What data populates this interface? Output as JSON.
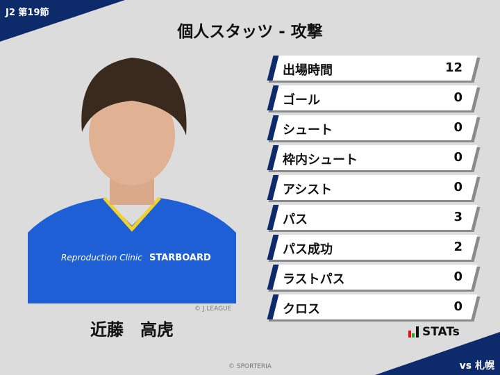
{
  "header": {
    "league": "J2 第19節",
    "title": "個人スタッツ - 攻撃"
  },
  "player": {
    "name": "近藤　高虎",
    "photo_credit": "© J.LEAGUE",
    "shirt_sponsors": [
      "Reproduction Clinic",
      "STARBOARD"
    ]
  },
  "stats": [
    {
      "label": "出場時間",
      "value": "12"
    },
    {
      "label": "ゴール",
      "value": "0"
    },
    {
      "label": "シュート",
      "value": "0"
    },
    {
      "label": "枠内シュート",
      "value": "0"
    },
    {
      "label": "アシスト",
      "value": "0"
    },
    {
      "label": "パス",
      "value": "3"
    },
    {
      "label": "パス成功",
      "value": "2"
    },
    {
      "label": "ラストパス",
      "value": "0"
    },
    {
      "label": "クロス",
      "value": "0"
    }
  ],
  "brand": {
    "logo": "STATs"
  },
  "footer": {
    "opponent": "vs 札幌",
    "copyright": "© SPORTERIA"
  },
  "colors": {
    "navy": "#0d2a6b",
    "background": "#dcdcdc"
  }
}
